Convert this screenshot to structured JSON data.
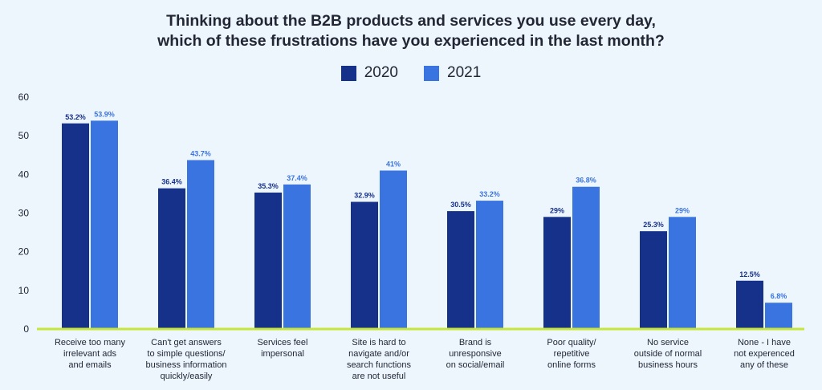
{
  "chart_data": {
    "type": "bar",
    "title": [
      "Thinking about the B2B products and services you use every day,",
      "which of these frustrations have you experienced in the last month?"
    ],
    "series": [
      {
        "name": "2020",
        "color": "#15318a",
        "values": [
          53.2,
          36.4,
          35.3,
          32.9,
          30.5,
          29,
          25.3,
          12.5
        ],
        "labels": [
          "53.2%",
          "36.4%",
          "35.3%",
          "32.9%",
          "30.5%",
          "29%",
          "25.3%",
          "12.5%"
        ]
      },
      {
        "name": "2021",
        "color": "#3a74e0",
        "values": [
          53.9,
          43.7,
          37.4,
          41,
          33.2,
          36.8,
          29,
          6.8
        ],
        "labels": [
          "53.9%",
          "43.7%",
          "37.4%",
          "41%",
          "33.2%",
          "36.8%",
          "29%",
          "6.8%"
        ]
      }
    ],
    "categories": [
      [
        "Receive too many",
        "irrelevant ads",
        "and emails"
      ],
      [
        "Can't get answers",
        "to simple questions/",
        "business information",
        "quickly/easily"
      ],
      [
        "Services feel",
        "impersonal"
      ],
      [
        "Site is hard to",
        "navigate and/or",
        "search functions",
        "are not useful"
      ],
      [
        "Brand is",
        "unresponsive",
        "on social/email"
      ],
      [
        "Poor quality/",
        "repetitive",
        "online forms"
      ],
      [
        "No service",
        "outside of normal",
        "business hours"
      ],
      [
        "None - I have",
        "not experenced",
        "any of these"
      ]
    ],
    "yticks": [
      "0",
      "10",
      "20",
      "30",
      "40",
      "50",
      "60"
    ],
    "ylim": [
      0,
      60
    ],
    "axis_color": "#c6e63a",
    "legend_position": "top-center"
  }
}
